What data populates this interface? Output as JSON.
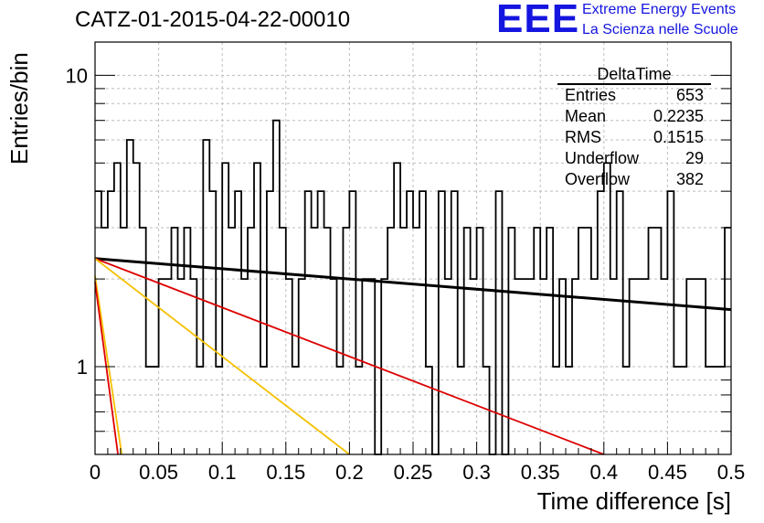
{
  "header": {
    "title": "CATZ-01-2015-04-22-00010",
    "logo_mark": "EEE",
    "logo_line1": "Extreme Energy Events",
    "logo_line2": "La Scienza nelle Scuole"
  },
  "stats": {
    "name": "DeltaTime",
    "rows": [
      {
        "label": "Entries",
        "value": "653"
      },
      {
        "label": "Mean",
        "value": "0.2235"
      },
      {
        "label": "RMS",
        "value": "0.1515"
      },
      {
        "label": "Underflow",
        "value": "29"
      },
      {
        "label": "Overflow",
        "value": "382"
      }
    ]
  },
  "colors": {
    "histogram": "#000000",
    "grid": "#bdbdbd",
    "fit_black": "#000000",
    "fit_red": "#dd0000",
    "fit_orange": "#f5c000",
    "logo": "#1515e0"
  },
  "chart_data": {
    "type": "histogram",
    "title": "CATZ-01-2015-04-22-00010",
    "xlabel": "Time difference [s]",
    "ylabel": "Entries/bin",
    "xlim": [
      0,
      0.5
    ],
    "ylim": [
      0.5,
      13
    ],
    "yscale": "log",
    "grid": true,
    "x_ticks": [
      {
        "value": 0,
        "label": "0"
      },
      {
        "value": 0.05,
        "label": "0.05"
      },
      {
        "value": 0.1,
        "label": "0.1"
      },
      {
        "value": 0.15,
        "label": "0.15"
      },
      {
        "value": 0.2,
        "label": "0.2"
      },
      {
        "value": 0.25,
        "label": "0.25"
      },
      {
        "value": 0.3,
        "label": "0.3"
      },
      {
        "value": 0.35,
        "label": "0.35"
      },
      {
        "value": 0.4,
        "label": "0.4"
      },
      {
        "value": 0.45,
        "label": "0.45"
      },
      {
        "value": 0.5,
        "label": "0.5"
      }
    ],
    "y_ticks": [
      {
        "value": 1,
        "label": "1"
      },
      {
        "value": 10,
        "label": "10"
      }
    ],
    "bin_width": 0.005,
    "bin_counts": [
      4,
      3,
      4,
      5,
      3,
      6,
      5,
      3,
      1,
      1,
      2,
      2,
      3,
      2,
      3,
      2,
      1,
      6,
      4,
      1,
      5,
      3,
      4,
      2,
      3,
      5,
      1,
      4,
      7,
      3,
      2,
      1,
      2,
      4,
      3,
      4,
      3,
      2,
      1,
      3,
      4,
      1,
      2,
      2,
      0,
      2,
      3,
      5,
      3,
      4,
      3,
      4,
      1,
      0,
      4,
      2,
      4,
      1,
      3,
      2,
      3,
      1,
      0,
      4,
      0,
      3,
      2,
      2,
      2,
      3,
      2,
      3,
      1,
      2,
      1,
      2,
      3,
      3,
      2,
      4,
      5,
      2,
      4,
      1,
      2,
      2,
      2,
      3,
      3,
      2,
      4,
      1,
      1,
      2,
      2,
      2,
      1,
      1,
      1,
      3
    ],
    "fits": [
      {
        "color": "#000000",
        "points": [
          [
            0,
            2.35
          ],
          [
            0.5,
            1.57
          ]
        ]
      },
      {
        "color": "#dd0000",
        "points": [
          [
            0,
            2.35
          ],
          [
            0.4,
            0.5
          ]
        ]
      },
      {
        "color": "#f5c000",
        "points": [
          [
            0,
            2.35
          ],
          [
            0.2,
            0.5
          ]
        ]
      },
      {
        "color": "#f5c000",
        "points": [
          [
            0,
            2.05
          ],
          [
            0.021,
            0.5
          ]
        ]
      },
      {
        "color": "#dd0000",
        "points": [
          [
            0,
            1.95
          ],
          [
            0.018,
            0.5
          ]
        ]
      }
    ]
  }
}
